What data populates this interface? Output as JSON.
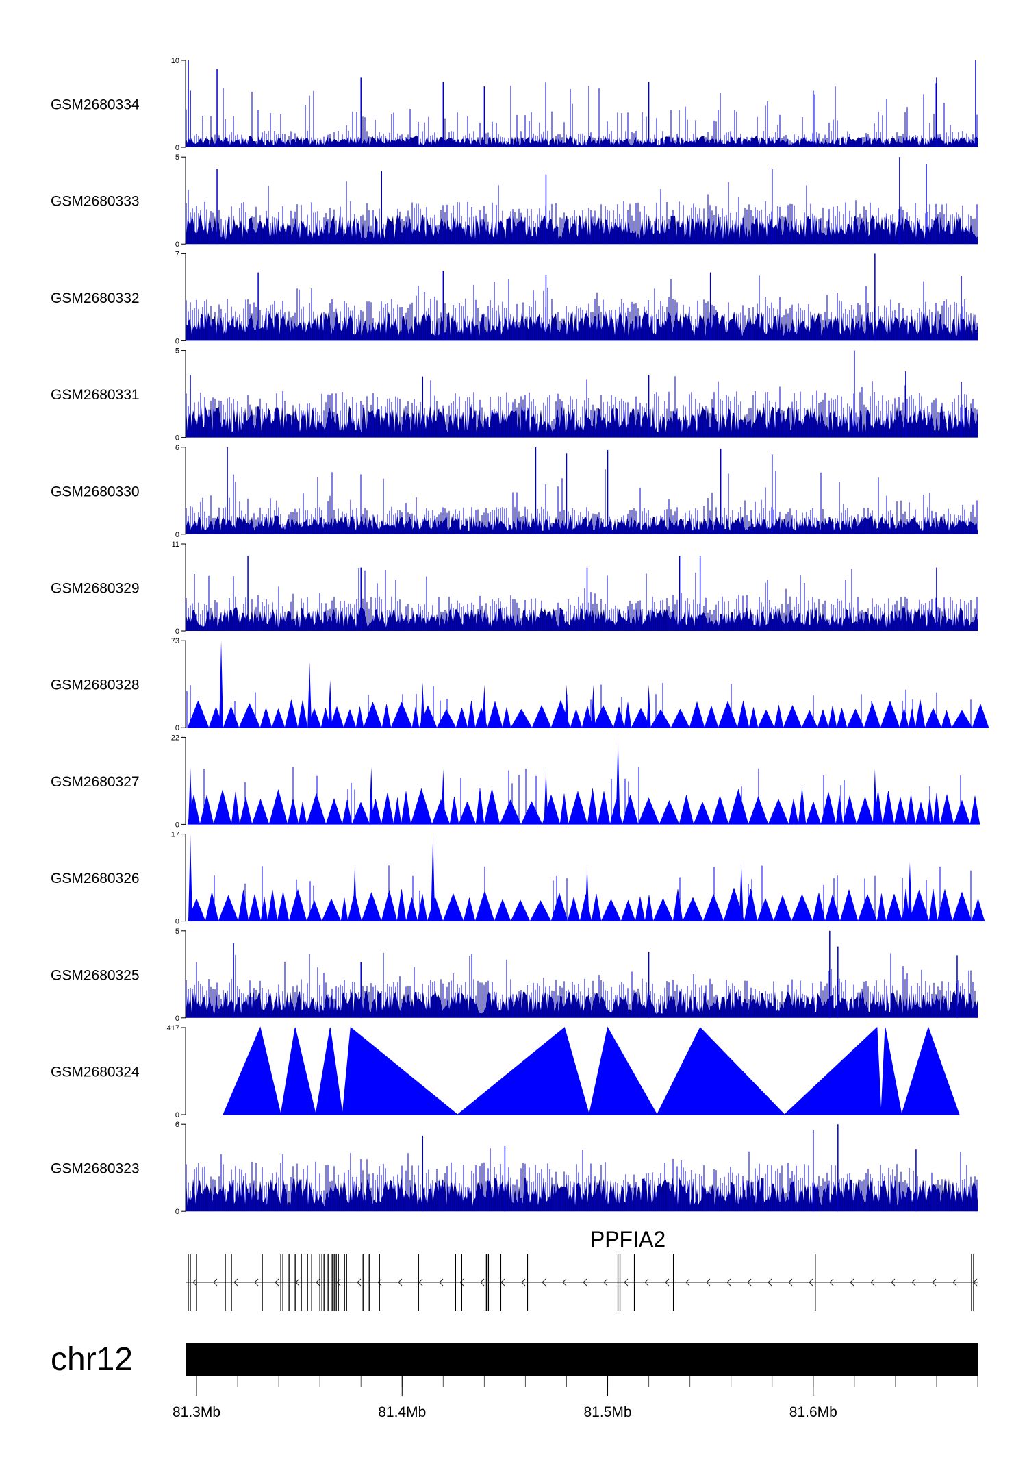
{
  "chart_data": {
    "type": "area",
    "chromosome": "chr12",
    "x_range_mb": [
      81.295,
      81.68
    ],
    "x_ticks_mb": [
      81.3,
      81.4,
      81.5,
      81.6
    ],
    "x_tick_labels": [
      "81.3Mb",
      "81.4Mb",
      "81.5Mb",
      "81.6Mb"
    ],
    "series": [
      {
        "name": "GSM2680334",
        "ylim": [
          0,
          10
        ],
        "y_tick_labels": [
          "0",
          "10"
        ],
        "color": "#0000cc",
        "style": "dense",
        "baseline_level": 1.0,
        "peaks": [
          [
            81.296,
            10
          ],
          [
            81.297,
            6.5
          ],
          [
            81.31,
            9
          ],
          [
            81.38,
            8
          ],
          [
            81.42,
            7.5
          ],
          [
            81.44,
            7
          ],
          [
            81.52,
            7.5
          ],
          [
            81.6,
            6.5
          ],
          [
            81.66,
            8
          ],
          [
            81.679,
            10
          ]
        ]
      },
      {
        "name": "GSM2680333",
        "ylim": [
          0,
          5
        ],
        "y_tick_labels": [
          "0",
          "5"
        ],
        "color": "#0000cc",
        "style": "dense",
        "baseline_level": 1.3,
        "peaks": [
          [
            81.31,
            4.3
          ],
          [
            81.39,
            4.2
          ],
          [
            81.47,
            4.0
          ],
          [
            81.58,
            4.3
          ],
          [
            81.642,
            5
          ],
          [
            81.655,
            4.6
          ]
        ]
      },
      {
        "name": "GSM2680332",
        "ylim": [
          0,
          7
        ],
        "y_tick_labels": [
          "0",
          "7"
        ],
        "color": "#0000cc",
        "style": "dense",
        "baseline_level": 1.8,
        "peaks": [
          [
            81.33,
            5.5
          ],
          [
            81.42,
            5.6
          ],
          [
            81.47,
            5.3
          ],
          [
            81.55,
            5.5
          ],
          [
            81.63,
            7
          ],
          [
            81.672,
            5.2
          ]
        ]
      },
      {
        "name": "GSM2680331",
        "ylim": [
          0,
          5
        ],
        "y_tick_labels": [
          "0",
          "5"
        ],
        "color": "#0000cc",
        "style": "dense",
        "baseline_level": 1.4,
        "peaks": [
          [
            81.297,
            3.6
          ],
          [
            81.41,
            3.5
          ],
          [
            81.52,
            3.6
          ],
          [
            81.62,
            5
          ],
          [
            81.645,
            3.8
          ],
          [
            81.672,
            3.2
          ]
        ]
      },
      {
        "name": "GSM2680330",
        "ylim": [
          0,
          6
        ],
        "y_tick_labels": [
          "0",
          "6"
        ],
        "color": "#0000cc",
        "style": "dense",
        "baseline_level": 1.0,
        "peaks": [
          [
            81.315,
            6
          ],
          [
            81.465,
            6
          ],
          [
            81.48,
            5.6
          ],
          [
            81.5,
            5.8
          ],
          [
            81.555,
            5.9
          ],
          [
            81.58,
            5.5
          ]
        ]
      },
      {
        "name": "GSM2680329",
        "ylim": [
          0,
          11
        ],
        "y_tick_labels": [
          "0",
          "11"
        ],
        "color": "#0000cc",
        "style": "dense",
        "baseline_level": 2.3,
        "peaks": [
          [
            81.325,
            9.5
          ],
          [
            81.38,
            8
          ],
          [
            81.49,
            8
          ],
          [
            81.535,
            9.5
          ],
          [
            81.545,
            9.5
          ],
          [
            81.66,
            8
          ]
        ]
      },
      {
        "name": "GSM2680328",
        "ylim": [
          0,
          73
        ],
        "y_tick_labels": [
          "0",
          "73"
        ],
        "color": "#0000ff",
        "style": "sparse",
        "baseline_level": 18,
        "peaks": [
          [
            81.312,
            73
          ],
          [
            81.355,
            55
          ],
          [
            81.365,
            40
          ],
          [
            81.41,
            38
          ],
          [
            81.44,
            36
          ],
          [
            81.48,
            36
          ],
          [
            81.493,
            36
          ],
          [
            81.52,
            36
          ]
        ]
      },
      {
        "name": "GSM2680327",
        "ylim": [
          0,
          22
        ],
        "y_tick_labels": [
          "0",
          "22"
        ],
        "color": "#0000ff",
        "style": "sparse",
        "baseline_level": 7,
        "peaks": [
          [
            81.297,
            14.5
          ],
          [
            81.385,
            14.5
          ],
          [
            81.42,
            14
          ],
          [
            81.47,
            14
          ],
          [
            81.505,
            22
          ],
          [
            81.63,
            14
          ]
        ]
      },
      {
        "name": "GSM2680326",
        "ylim": [
          0,
          17
        ],
        "y_tick_labels": [
          "0",
          "17"
        ],
        "color": "#0000ff",
        "style": "sparse",
        "baseline_level": 5,
        "peaks": [
          [
            81.297,
            17
          ],
          [
            81.415,
            17
          ],
          [
            81.377,
            11
          ],
          [
            81.49,
            11
          ],
          [
            81.565,
            11.5
          ],
          [
            81.647,
            11.5
          ]
        ]
      },
      {
        "name": "GSM2680325",
        "ylim": [
          0,
          5
        ],
        "y_tick_labels": [
          "0",
          "5"
        ],
        "color": "#0000cc",
        "style": "dense",
        "baseline_level": 1.2,
        "peaks": [
          [
            81.318,
            4.3
          ],
          [
            81.38,
            3.2
          ],
          [
            81.52,
            3.8
          ],
          [
            81.608,
            5
          ],
          [
            81.612,
            4.1
          ],
          [
            81.67,
            3.6
          ]
        ]
      },
      {
        "name": "GSM2680324",
        "ylim": [
          0,
          417
        ],
        "y_tick_labels": [
          "0",
          "417"
        ],
        "color": "#0000ff",
        "style": "triangles",
        "vertices": [
          [
            81.313,
            0
          ],
          [
            81.331,
            417
          ],
          [
            81.341,
            0
          ],
          [
            81.348,
            417
          ],
          [
            81.358,
            0
          ],
          [
            81.365,
            417
          ],
          [
            81.371,
            0
          ],
          [
            81.375,
            417
          ],
          [
            81.427,
            0
          ],
          [
            81.479,
            417
          ],
          [
            81.491,
            0
          ],
          [
            81.5,
            417
          ],
          [
            81.524,
            0
          ],
          [
            81.545,
            417
          ],
          [
            81.586,
            0
          ],
          [
            81.631,
            417
          ],
          [
            81.633,
            0
          ],
          [
            81.635,
            417
          ],
          [
            81.643,
            0
          ],
          [
            81.656,
            417
          ],
          [
            81.671,
            0
          ]
        ]
      },
      {
        "name": "GSM2680323",
        "ylim": [
          0,
          6
        ],
        "y_tick_labels": [
          "0",
          "6"
        ],
        "color": "#0000cc",
        "style": "dense",
        "baseline_level": 1.8,
        "peaks": [
          [
            81.41,
            5.2
          ],
          [
            81.45,
            4.5
          ],
          [
            81.6,
            5.6
          ],
          [
            81.612,
            6
          ],
          [
            81.65,
            4.3
          ]
        ]
      }
    ],
    "gene": {
      "name": "PPFIA2",
      "strand": "-",
      "exons_mb": [
        81.296,
        81.297,
        81.3,
        81.314,
        81.317,
        81.332,
        81.341,
        81.342,
        81.345,
        81.348,
        81.351,
        81.354,
        81.356,
        81.36,
        81.361,
        81.362,
        81.364,
        81.366,
        81.367,
        81.368,
        81.369,
        81.372,
        81.373,
        81.381,
        81.384,
        81.389,
        81.408,
        81.426,
        81.429,
        81.441,
        81.442,
        81.448,
        81.461,
        81.505,
        81.506,
        81.513,
        81.532,
        81.601,
        81.677,
        81.678
      ]
    }
  }
}
